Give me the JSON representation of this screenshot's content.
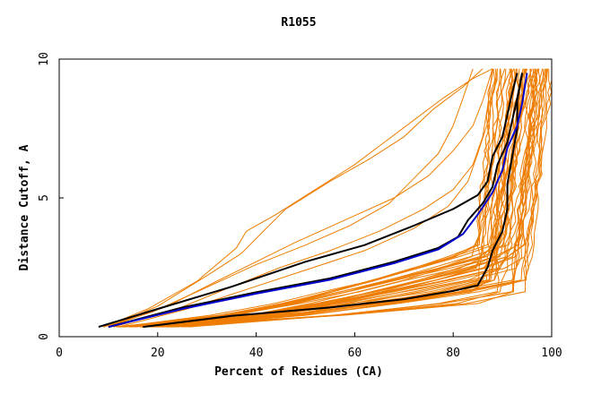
{
  "chart_data": {
    "type": "line",
    "title": "R1055",
    "xlabel": "Percent of Residues (CA)",
    "ylabel": "Distance Cutoff, A",
    "xlim": [
      0,
      100
    ],
    "ylim": [
      0,
      10
    ],
    "x_ticks": [
      "0",
      "20",
      "40",
      "60",
      "80",
      "100"
    ],
    "y_ticks": [
      "0",
      "5",
      "10"
    ],
    "grid": false,
    "legend": "none",
    "colors": {
      "background_models": "#ee7d00",
      "highlight_black": "#000000",
      "highlight_blue": "#0000cc"
    },
    "series": [
      {
        "color": "#000000",
        "points": [
          [
            8,
            0.35
          ],
          [
            20,
            1.0
          ],
          [
            35,
            1.8
          ],
          [
            50,
            2.7
          ],
          [
            62,
            3.3
          ],
          [
            72,
            4.0
          ],
          [
            80,
            4.6
          ],
          [
            85,
            5.1
          ],
          [
            87,
            5.6
          ],
          [
            88,
            6.5
          ],
          [
            90,
            7.2
          ],
          [
            91,
            8.0
          ],
          [
            92,
            8.8
          ],
          [
            93,
            9.5
          ]
        ]
      },
      {
        "color": "#000000",
        "points": [
          [
            10,
            0.35
          ],
          [
            25,
            1.05
          ],
          [
            40,
            1.6
          ],
          [
            55,
            2.1
          ],
          [
            68,
            2.7
          ],
          [
            77,
            3.2
          ],
          [
            81,
            3.6
          ],
          [
            83,
            4.2
          ],
          [
            86,
            4.8
          ],
          [
            88,
            5.4
          ],
          [
            89,
            6.2
          ],
          [
            91,
            7.0
          ],
          [
            92,
            7.8
          ],
          [
            93,
            8.6
          ],
          [
            94,
            9.5
          ]
        ]
      },
      {
        "color": "#000000",
        "points": [
          [
            17,
            0.35
          ],
          [
            35,
            0.75
          ],
          [
            55,
            1.05
          ],
          [
            70,
            1.35
          ],
          [
            80,
            1.65
          ],
          [
            85,
            1.85
          ],
          [
            87,
            2.5
          ],
          [
            88,
            3.1
          ],
          [
            90,
            3.8
          ],
          [
            91,
            4.6
          ],
          [
            91,
            5.5
          ],
          [
            92,
            6.5
          ],
          [
            93,
            7.5
          ],
          [
            93,
            8.5
          ],
          [
            94,
            9.5
          ]
        ]
      },
      {
        "color": "#0000cc",
        "points": [
          [
            10,
            0.35
          ],
          [
            25,
            1.0
          ],
          [
            40,
            1.55
          ],
          [
            55,
            2.05
          ],
          [
            68,
            2.65
          ],
          [
            77,
            3.15
          ],
          [
            82,
            3.7
          ],
          [
            85,
            4.4
          ],
          [
            88,
            5.2
          ],
          [
            90,
            6.0
          ],
          [
            91,
            6.8
          ],
          [
            93,
            7.6
          ],
          [
            94,
            8.4
          ],
          [
            95,
            9.5
          ]
        ]
      }
    ]
  }
}
